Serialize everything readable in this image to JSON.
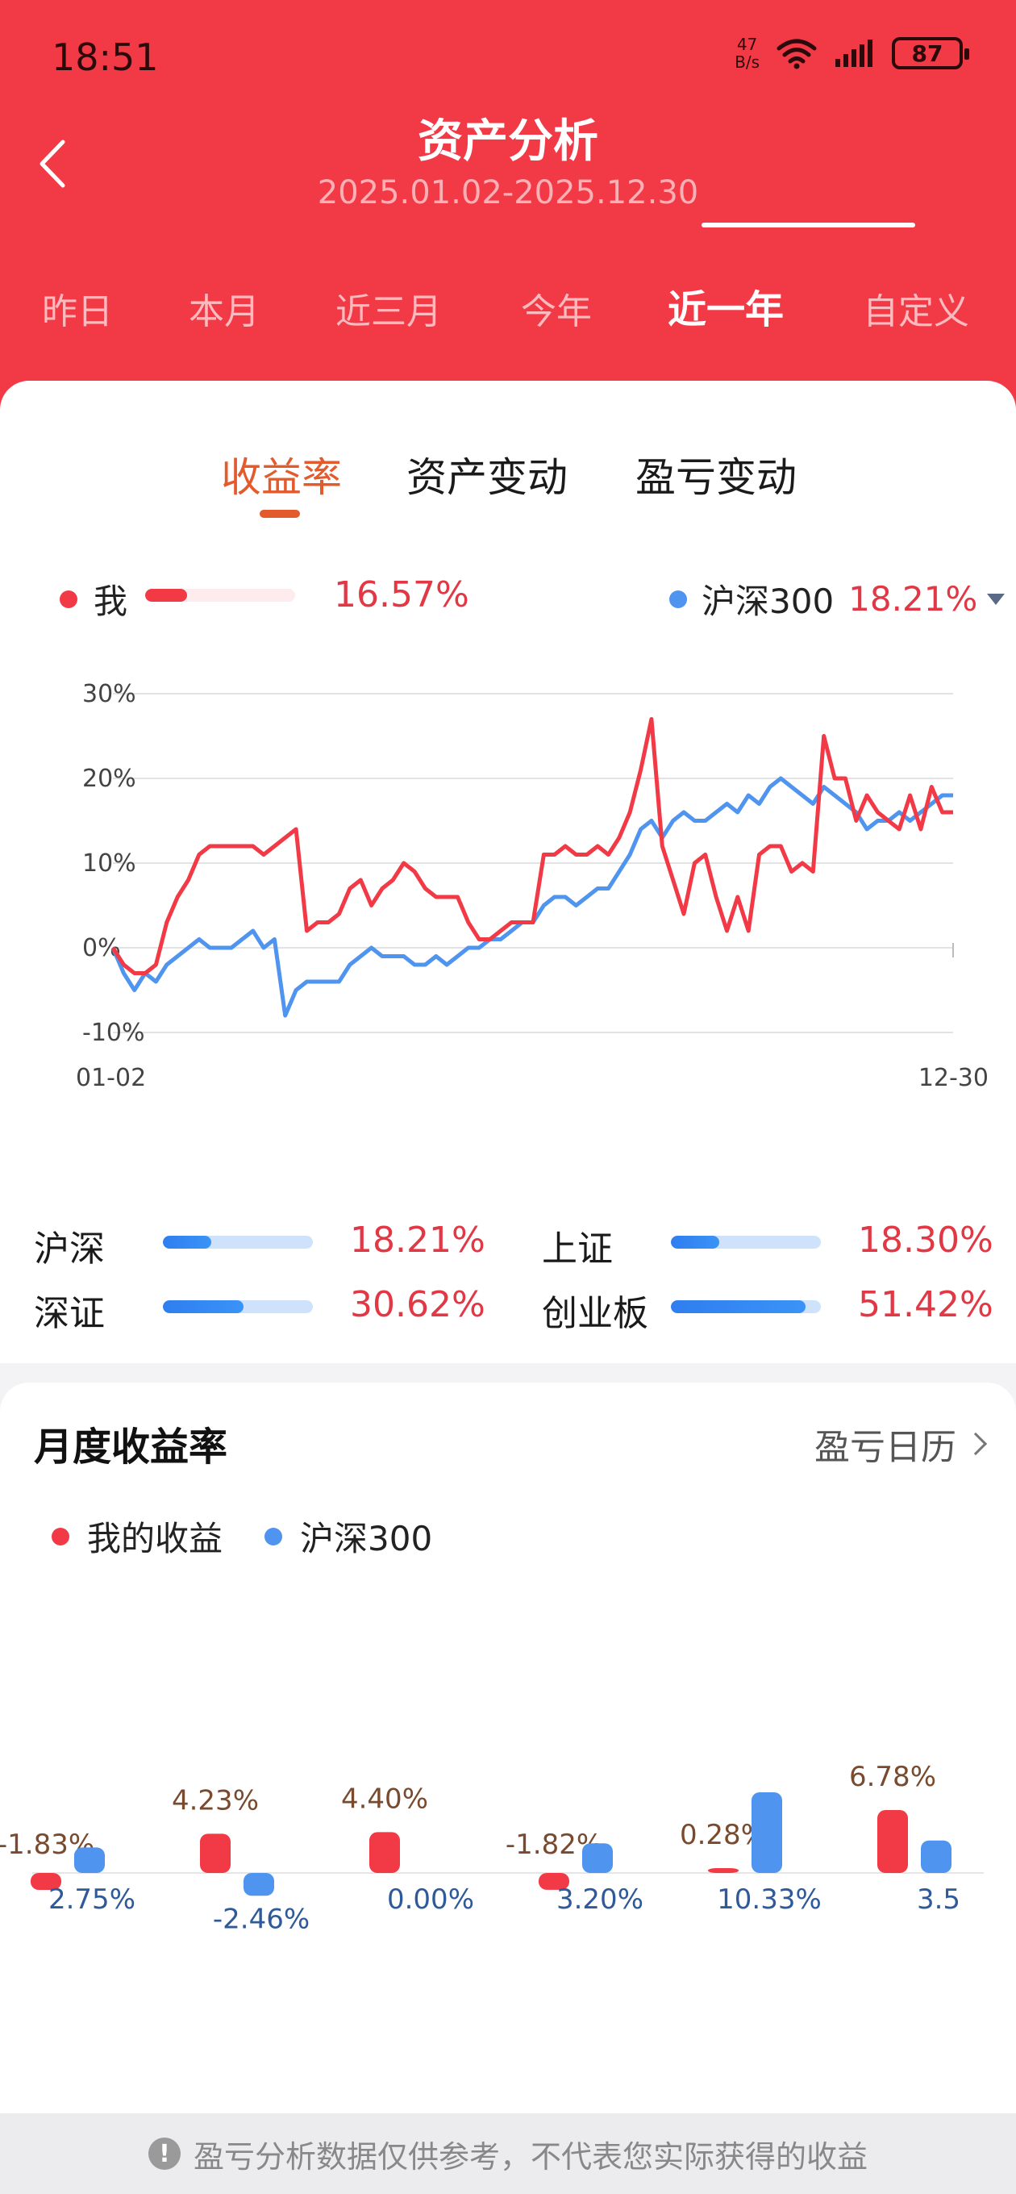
{
  "status": {
    "time": "18:51",
    "net_speed_top": "47",
    "net_speed_bottom": "B/s",
    "battery": "87"
  },
  "header": {
    "title": "资产分析",
    "date_range": "2025.01.02-2025.12.30"
  },
  "period_tabs": [
    {
      "label": "昨日",
      "active": false
    },
    {
      "label": "本月",
      "active": false
    },
    {
      "label": "近三月",
      "active": false
    },
    {
      "label": "今年",
      "active": false
    },
    {
      "label": "近一年",
      "active": true
    },
    {
      "label": "自定义",
      "active": false
    }
  ],
  "sub_tabs": [
    {
      "label": "收益率",
      "active": true
    },
    {
      "label": "资产变动",
      "active": false
    },
    {
      "label": "盈亏变动",
      "active": false
    }
  ],
  "legend": {
    "me_label": "我",
    "me_value": "16.57%",
    "me_fraction": 0.28,
    "benchmark_label": "沪深300",
    "benchmark_value": "18.21%"
  },
  "colors": {
    "me": "#f23a47",
    "benchmark": "#4f94ef",
    "accent": "#e35a2d"
  },
  "chart_data": [
    {
      "type": "line",
      "title": "",
      "xlabel": "",
      "ylabel": "",
      "x_ticks": [
        "01-02",
        "12-30"
      ],
      "y_ticks": [
        "30%",
        "20%",
        "10%",
        "0%",
        "-10%"
      ],
      "ylim": [
        -10,
        30
      ],
      "grid": true,
      "series": [
        {
          "name": "我",
          "color": "#f23a47",
          "values": [
            0,
            -2,
            -3,
            -3,
            -2,
            3,
            6,
            8,
            11,
            12,
            12,
            12,
            12,
            12,
            11,
            12,
            13,
            14,
            2,
            3,
            3,
            4,
            7,
            8,
            5,
            7,
            8,
            10,
            9,
            7,
            6,
            6,
            6,
            3,
            1,
            1,
            2,
            3,
            3,
            3,
            11,
            11,
            12,
            11,
            11,
            12,
            11,
            13,
            16,
            21,
            27,
            12,
            8,
            4,
            10,
            11,
            6,
            2,
            6,
            2,
            11,
            12,
            12,
            9,
            10,
            9,
            25,
            20,
            20,
            15,
            18,
            16,
            15,
            14,
            18,
            14,
            19,
            16,
            16
          ]
        },
        {
          "name": "沪深300",
          "color": "#4f94ef",
          "values": [
            0,
            -3,
            -5,
            -3,
            -4,
            -2,
            -1,
            0,
            1,
            0,
            0,
            0,
            1,
            2,
            0,
            1,
            -8,
            -5,
            -4,
            -4,
            -4,
            -4,
            -2,
            -1,
            0,
            -1,
            -1,
            -1,
            -2,
            -2,
            -1,
            -2,
            -1,
            0,
            0,
            1,
            1,
            2,
            3,
            3,
            5,
            6,
            6,
            5,
            6,
            7,
            7,
            9,
            11,
            14,
            15,
            13,
            15,
            16,
            15,
            15,
            16,
            17,
            16,
            18,
            17,
            19,
            20,
            19,
            18,
            17,
            19,
            18,
            17,
            16,
            14,
            15,
            15,
            16,
            15,
            16,
            17,
            18,
            18
          ]
        }
      ]
    },
    {
      "type": "bar",
      "title": "",
      "series": [
        {
          "name": "我的收益",
          "color": "#f23a47",
          "values": [
            -1.83,
            4.23,
            4.4,
            -1.82,
            0.28,
            6.78
          ]
        },
        {
          "name": "沪深300",
          "color": "#4f94ef",
          "values": [
            2.75,
            -2.46,
            0.0,
            3.2,
            10.33,
            3.5
          ]
        }
      ],
      "labels_me": [
        "-1.83%",
        "4.23%",
        "4.40%",
        "-1.82%",
        "0.28%",
        "6.78%"
      ],
      "labels_hs": [
        "2.75%",
        "-2.46%",
        "0.00%",
        "3.20%",
        "10.33%",
        "3.5"
      ]
    }
  ],
  "indices": [
    {
      "name": "沪深",
      "value": "18.21%",
      "fraction": 0.32
    },
    {
      "name": "上证",
      "value": "18.30%",
      "fraction": 0.32
    },
    {
      "name": "深证",
      "value": "30.62%",
      "fraction": 0.54
    },
    {
      "name": "创业板",
      "value": "51.42%",
      "fraction": 0.9
    }
  ],
  "monthly": {
    "title": "月度收益率",
    "calendar_link": "盈亏日历",
    "legend_me": "我的收益",
    "legend_hs": "沪深300"
  },
  "footer": {
    "notice": "盈亏分析数据仅供参考，不代表您实际获得的收益",
    "icon": "!"
  }
}
